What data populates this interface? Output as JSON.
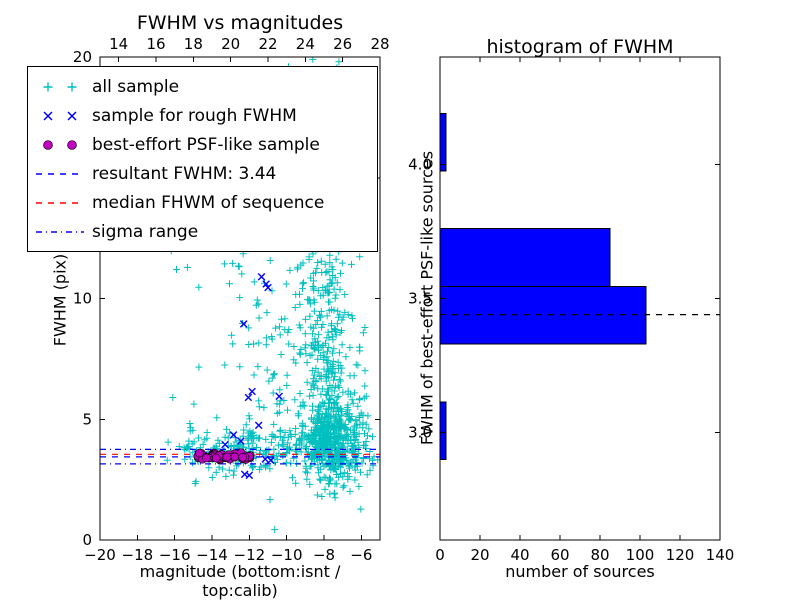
{
  "chart_data": [
    {
      "type": "scatter",
      "title": "FWHM vs magnitudes",
      "xlabel": "magnitude (bottom:isnt / top:calib)",
      "ylabel": "FWHM (pix)",
      "xlim": [
        -20,
        -5
      ],
      "ylim": [
        0,
        20
      ],
      "xticks_bottom": [
        {
          "v": -20,
          "label": "−20"
        },
        {
          "v": -18,
          "label": "−18"
        },
        {
          "v": -16,
          "label": "−16"
        },
        {
          "v": -14,
          "label": "−14"
        },
        {
          "v": -12,
          "label": "−12"
        },
        {
          "v": -10,
          "label": "−10"
        },
        {
          "v": -8,
          "label": "−8"
        },
        {
          "v": -6,
          "label": "−6"
        }
      ],
      "xticks_top": [
        {
          "v": -19,
          "label": "14"
        },
        {
          "v": -17,
          "label": "16"
        },
        {
          "v": -15,
          "label": "18"
        },
        {
          "v": -13,
          "label": "20"
        },
        {
          "v": -11,
          "label": "22"
        },
        {
          "v": -9,
          "label": "24"
        },
        {
          "v": -7,
          "label": "26"
        },
        {
          "v": -5,
          "label": "28"
        }
      ],
      "yticks": [
        {
          "v": 0,
          "label": "0"
        },
        {
          "v": 5,
          "label": "5"
        },
        {
          "v": 10,
          "label": "10"
        },
        {
          "v": 15,
          "label": "15"
        },
        {
          "v": 20,
          "label": "20"
        }
      ],
      "resultant_fwhm": 3.44,
      "hlines": [
        {
          "name": "sigma-upper",
          "y": 3.75,
          "color": "#0000ff",
          "dash": "dashdot"
        },
        {
          "name": "median-fwhm",
          "y": 3.55,
          "color": "#ff0000",
          "dash": "dashed"
        },
        {
          "name": "resultant-fwhm",
          "y": 3.44,
          "color": "#0000ff",
          "dash": "dashed"
        },
        {
          "name": "sigma-lower",
          "y": 3.15,
          "color": "#0000ff",
          "dash": "dashdot"
        }
      ],
      "series": {
        "all_sample": {
          "label": "all sample",
          "color": "#00bfbf",
          "marker": "plus",
          "clusters": [
            {
              "n": 420,
              "cx": -7.8,
              "sx": 0.75,
              "cy": 4.1,
              "sy": 0.85
            },
            {
              "n": 240,
              "cx": -7.85,
              "sx": 0.6,
              "cy": 7.5,
              "sy": 2.8
            },
            {
              "n": 150,
              "cx": -8.0,
              "sx": 1.0,
              "cy": 14.5,
              "sy": 3.2
            },
            {
              "n": 110,
              "cx": -11.3,
              "sx": 1.3,
              "cy": 3.8,
              "sy": 0.45
            },
            {
              "n": 70,
              "cx": -13.6,
              "sx": 1.1,
              "cy": 3.65,
              "sy": 0.45
            },
            {
              "n": 70,
              "cx": -10.3,
              "sx": 1.1,
              "cy": 7.0,
              "sy": 2.8
            },
            {
              "n": 60,
              "cx": -6.2,
              "sx": 0.55,
              "cy": 5.0,
              "sy": 2.0
            },
            {
              "n": 45,
              "cx": -6.5,
              "sx": 0.7,
              "cy": 3.7,
              "sy": 0.6
            },
            {
              "n": 35,
              "cx": -12.0,
              "sx": 1.0,
              "cy": 12.0,
              "sy": 4.0
            },
            {
              "n": 30,
              "cx": -9.3,
              "sx": 0.8,
              "cy": 11.0,
              "sy": 2.2
            },
            {
              "n": 14,
              "cx": -15.2,
              "sx": 0.5,
              "cy": 3.9,
              "sy": 0.9
            },
            {
              "n": 8,
              "cx": -15.1,
              "sx": 0.7,
              "cy": 10.5,
              "sy": 2.0
            }
          ],
          "extra_points": [
            [
              -16.4,
              3.3
            ],
            [
              -16.1,
              5.9
            ],
            [
              -15.9,
              11.2
            ],
            [
              -5.4,
              3.3
            ],
            [
              -5.6,
              4.6
            ],
            [
              -9.9,
              19.6
            ],
            [
              -7.2,
              19.8
            ],
            [
              -8.6,
              19.9
            ],
            [
              -10.6,
              18.9
            ],
            [
              -6.9,
              18.5
            ]
          ]
        },
        "rough_fwhm": {
          "label": "sample for rough FWHM",
          "color": "#0000ff",
          "marker": "x",
          "points": [
            [
              -11.35,
              10.9
            ],
            [
              -11.1,
              10.6
            ],
            [
              -11.0,
              10.45
            ],
            [
              -12.3,
              8.95
            ],
            [
              -11.85,
              6.15
            ],
            [
              -12.05,
              5.9
            ],
            [
              -10.4,
              5.95
            ],
            [
              -11.5,
              4.75
            ],
            [
              -12.85,
              4.35
            ],
            [
              -12.45,
              4.1
            ],
            [
              -13.3,
              3.95
            ],
            [
              -13.6,
              3.6
            ],
            [
              -13.05,
              3.45
            ],
            [
              -14.75,
              3.55
            ],
            [
              -14.6,
              3.45
            ],
            [
              -14.45,
              3.5
            ],
            [
              -14.3,
              3.42
            ],
            [
              -14.15,
              3.48
            ],
            [
              -11.15,
              3.35
            ],
            [
              -10.85,
              3.3
            ],
            [
              -12.25,
              2.72
            ],
            [
              -12.0,
              2.68
            ]
          ]
        },
        "psf_like": {
          "label": "best-effort PSF-like sample",
          "color": "#bf00bf",
          "marker": "circle",
          "band": {
            "n": 62,
            "x0": -14.85,
            "x1": -11.9,
            "cy": 3.46,
            "sy": 0.08
          }
        }
      },
      "legend": [
        {
          "label": "all sample",
          "swatch": "plus",
          "color": "#00bfbf"
        },
        {
          "label": "sample for rough FWHM",
          "swatch": "x",
          "color": "#0000ff"
        },
        {
          "label": "best-effort PSF-like sample",
          "swatch": "circle",
          "color": "#bf00bf"
        },
        {
          "label": "resultant FWHM: 3.44",
          "swatch": "dashed",
          "color": "#0000ff"
        },
        {
          "label": "median FHWM of sequence",
          "swatch": "dashed",
          "color": "#ff0000"
        },
        {
          "label": "sigma range",
          "swatch": "dashdot",
          "color": "#0000ff"
        }
      ]
    },
    {
      "type": "bar",
      "orientation": "horizontal",
      "title": "histogram of FWHM",
      "xlabel": "number of sources",
      "ylabel": "FWHM of best-effort PSF-like sources",
      "xlim": [
        0,
        140
      ],
      "ylim": [
        2.6,
        4.4
      ],
      "xticks": [
        {
          "v": 0,
          "label": "0"
        },
        {
          "v": 20,
          "label": "20"
        },
        {
          "v": 40,
          "label": "40"
        },
        {
          "v": 60,
          "label": "60"
        },
        {
          "v": 80,
          "label": "80"
        },
        {
          "v": 100,
          "label": "100"
        },
        {
          "v": 120,
          "label": "120"
        },
        {
          "v": 140,
          "label": "140"
        }
      ],
      "yticks": [
        {
          "v": 3.0,
          "label": "3.0"
        },
        {
          "v": 3.5,
          "label": "3.5"
        },
        {
          "v": 4.0,
          "label": "4.0"
        }
      ],
      "bar_color": "#0000ff",
      "bin_edges": [
        2.9,
        3.115,
        3.33,
        3.545,
        3.76,
        3.975,
        4.19
      ],
      "counts": [
        3,
        0,
        103,
        85,
        0,
        3
      ],
      "marker_line": {
        "y": 3.44,
        "color": "#000000",
        "dash": "dashed"
      }
    }
  ]
}
